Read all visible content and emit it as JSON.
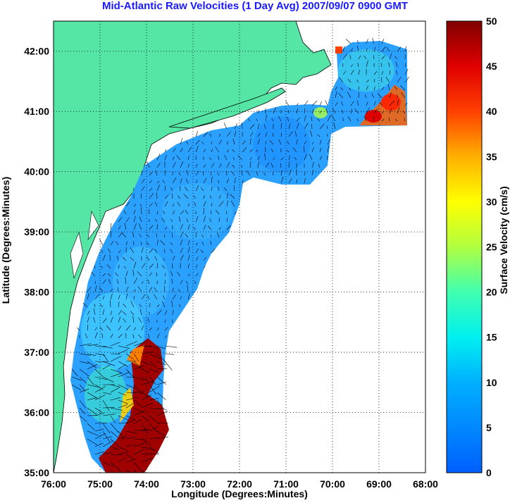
{
  "title": "Mid-Atlantic Raw Velocities (1 Day Avg) 2007/09/07 0900 GMT",
  "xlabel": "Longitude (Degrees:Minutes)",
  "ylabel": "Latitude (Degrees:Minutes)",
  "colorbar": {
    "label": "Surface Velocity (cm/s)",
    "ticks": [
      "0",
      "5",
      "10",
      "15",
      "20",
      "25",
      "30",
      "35",
      "40",
      "45",
      "50"
    ],
    "range": [
      0,
      50
    ]
  },
  "axes": {
    "x_ticks": [
      "76:00",
      "75:00",
      "74:00",
      "73:00",
      "72:00",
      "71:00",
      "70:00",
      "69:00",
      "68:00"
    ],
    "y_ticks": [
      "35:00",
      "36:00",
      "37:00",
      "38:00",
      "39:00",
      "40:00",
      "41:00",
      "42:00"
    ],
    "x_range": [
      -76,
      -68
    ],
    "y_range": [
      35,
      42.5
    ],
    "grid": true
  },
  "colors": {
    "land": "#55e6a6",
    "title": "#1a1aff",
    "field_base": "#2aa0ff",
    "hot": "#a00000"
  }
}
